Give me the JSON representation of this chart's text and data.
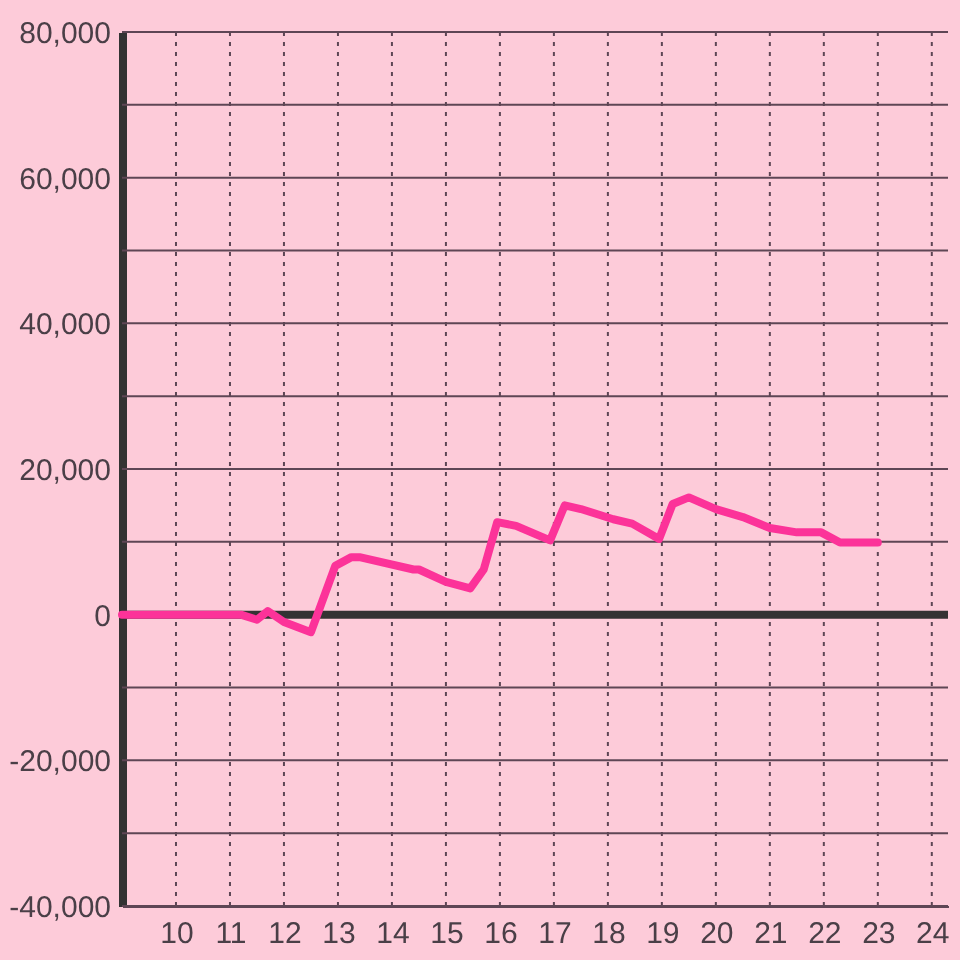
{
  "chart_data": {
    "type": "line",
    "x": [
      9,
      11.2,
      11.5,
      11.7,
      12,
      12.5,
      12.95,
      13.25,
      13.4,
      14.4,
      14.5,
      15,
      15.45,
      15.7,
      15.95,
      16.3,
      16.93,
      17.2,
      17.5,
      18.1,
      18.45,
      18.95,
      19.2,
      19.5,
      20,
      20.5,
      21,
      21.5,
      21.95,
      22.3,
      23
    ],
    "values": [
      0,
      0,
      -700,
      500,
      -1000,
      -2400,
      6700,
      7900,
      7900,
      6200,
      6200,
      4500,
      3600,
      6200,
      12700,
      12200,
      10200,
      15000,
      14500,
      13100,
      12500,
      10400,
      15200,
      16100,
      14500,
      13400,
      11900,
      11300,
      11300,
      9900,
      9900
    ],
    "color": "#fc3399",
    "xlim": [
      9,
      24.3
    ],
    "ylim": [
      -40000,
      80000
    ],
    "xticks": [
      10,
      11,
      12,
      13,
      14,
      15,
      16,
      17,
      18,
      19,
      20,
      21,
      22,
      23,
      24
    ],
    "yticks": [
      {
        "value": -40000,
        "label": "-40,000"
      },
      {
        "value": -30000,
        "label": null
      },
      {
        "value": -20000,
        "label": "-20,000"
      },
      {
        "value": -10000,
        "label": null
      },
      0,
      {
        "value": 10000,
        "label": null
      },
      {
        "value": 20000,
        "label": "20,000"
      },
      {
        "value": 30000,
        "label": null
      },
      {
        "value": 40000,
        "label": "40,000"
      },
      {
        "value": 50000,
        "label": null
      },
      {
        "value": 60000,
        "label": "60,000"
      },
      {
        "value": 70000,
        "label": null
      },
      {
        "value": 80000,
        "label": "80,000"
      }
    ],
    "grid": true,
    "ref_lines": [
      {
        "axis": "y",
        "value": 0,
        "color": "#333333"
      }
    ]
  }
}
